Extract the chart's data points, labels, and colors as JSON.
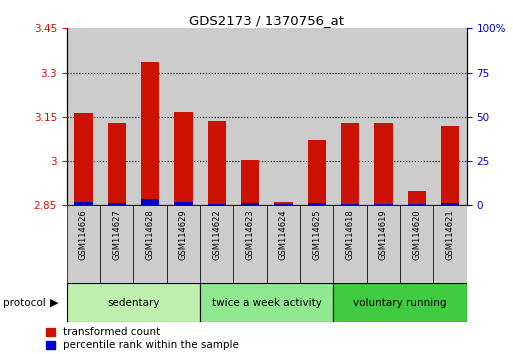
{
  "title": "GDS2173 / 1370756_at",
  "samples": [
    "GSM114626",
    "GSM114627",
    "GSM114628",
    "GSM114629",
    "GSM114622",
    "GSM114623",
    "GSM114624",
    "GSM114625",
    "GSM114618",
    "GSM114619",
    "GSM114620",
    "GSM114621"
  ],
  "red_values": [
    3.163,
    3.13,
    3.335,
    3.165,
    3.135,
    3.003,
    2.862,
    3.07,
    3.13,
    3.13,
    2.9,
    3.12
  ],
  "blue_values": [
    2.862,
    2.858,
    2.87,
    2.86,
    2.855,
    2.857,
    2.853,
    2.858,
    2.856,
    2.855,
    2.853,
    2.858
  ],
  "baseline": 2.85,
  "ymin": 2.85,
  "ymax": 3.45,
  "yticks": [
    2.85,
    3.0,
    3.15,
    3.3,
    3.45
  ],
  "ytick_labels": [
    "2.85",
    "3",
    "3.15",
    "3.3",
    "3.45"
  ],
  "right_yticks": [
    0,
    25,
    50,
    75,
    100
  ],
  "right_ytick_labels": [
    "0",
    "25",
    "50",
    "75",
    "100%"
  ],
  "groups": [
    {
      "label": "sedentary",
      "indices": [
        0,
        1,
        2,
        3
      ],
      "color": "#c0f0b0"
    },
    {
      "label": "twice a week activity",
      "indices": [
        4,
        5,
        6,
        7
      ],
      "color": "#90e890"
    },
    {
      "label": "voluntary running",
      "indices": [
        8,
        9,
        10,
        11
      ],
      "color": "#40cc40"
    }
  ],
  "bar_width": 0.55,
  "red_color": "#cc1100",
  "blue_color": "#0000cc",
  "bg_color": "#ffffff",
  "bar_bg_color": "#cccccc",
  "legend_red": "transformed count",
  "legend_blue": "percentile rank within the sample",
  "protocol_label": "protocol",
  "left_axis_color": "#cc1100",
  "right_axis_color": "#0000cc"
}
